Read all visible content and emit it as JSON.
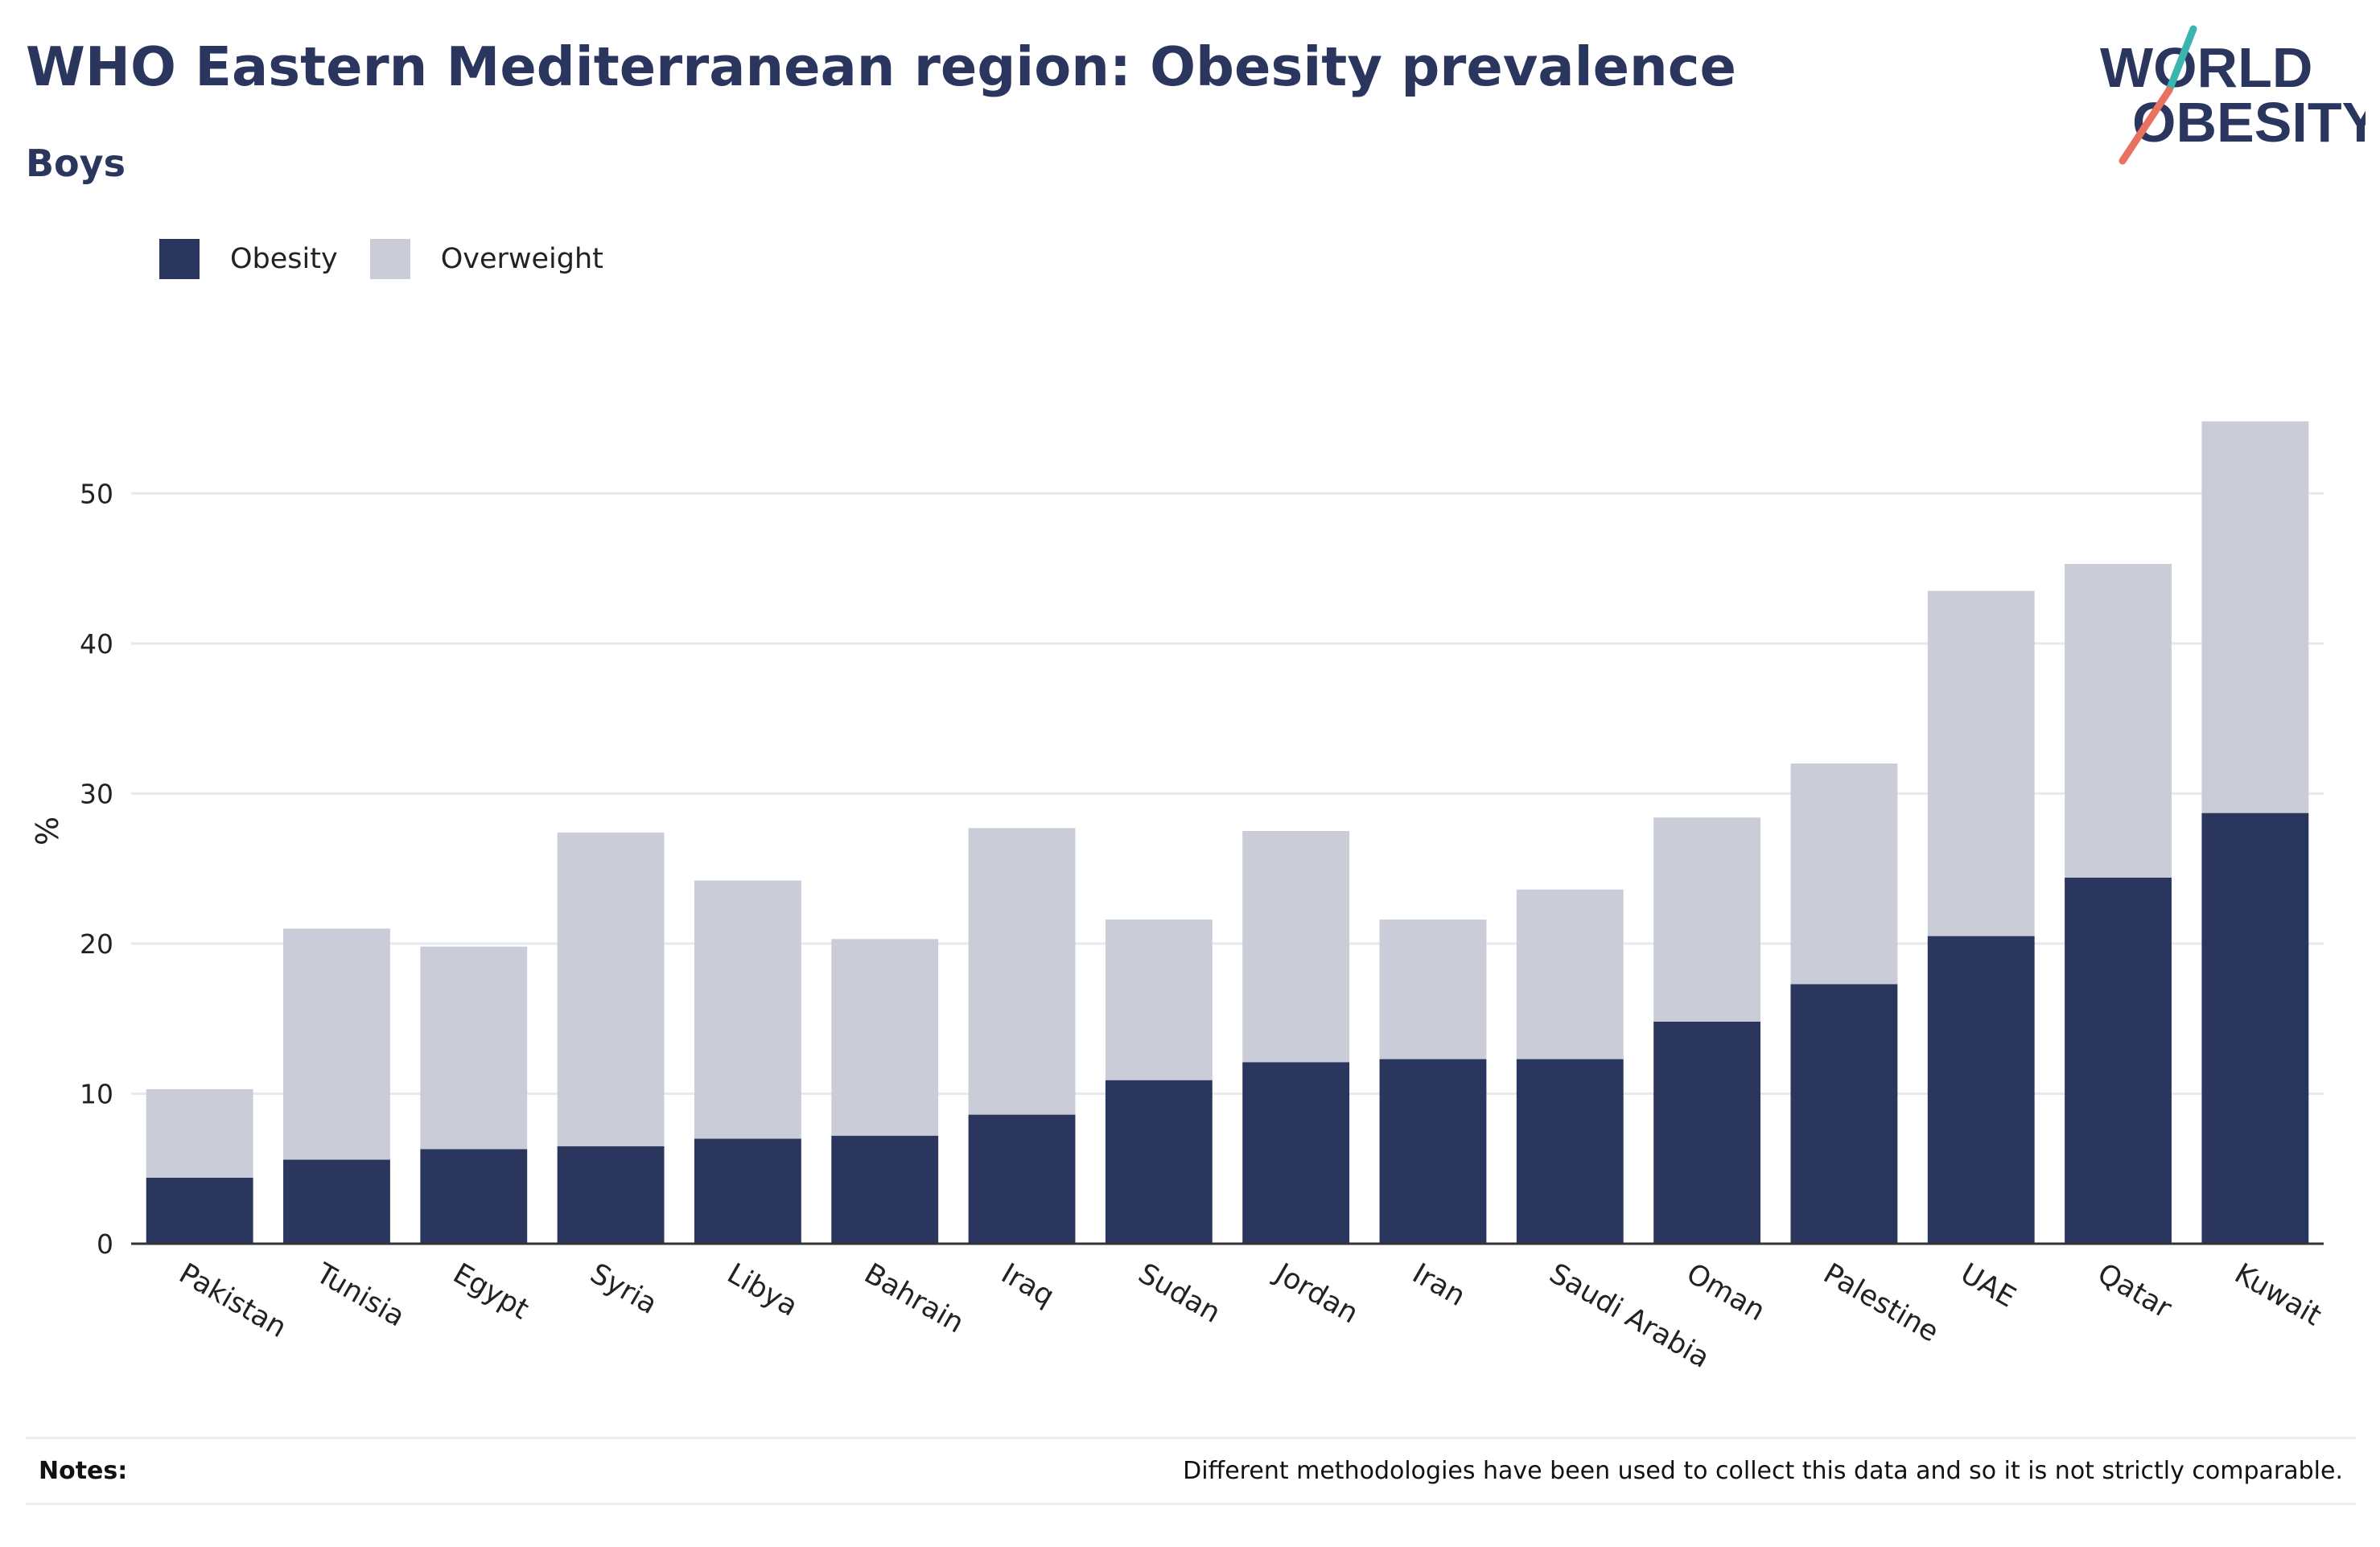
{
  "header": {
    "title": "WHO Eastern Mediterranean region: Obesity prevalence",
    "subtitle": "Boys"
  },
  "logo": {
    "line1": "WORLD",
    "line2": "OBESITY",
    "text_color": "#2b365f",
    "accent_teal": "#3ab5b0",
    "accent_coral": "#e8725f"
  },
  "notes": {
    "label": "Notes:",
    "text": "Different methodologies have been used to collect this data and so it is not strictly comparable."
  },
  "chart_data": {
    "type": "bar",
    "stacked": true,
    "title": "WHO Eastern Mediterranean region: Obesity prevalence",
    "subtitle": "Boys",
    "xlabel": "",
    "ylabel": "%",
    "ylim": [
      0,
      55
    ],
    "yticks": [
      0,
      10,
      20,
      30,
      40,
      50
    ],
    "grid": true,
    "legend_position": "top-left",
    "categories": [
      "Pakistan",
      "Tunisia",
      "Egypt",
      "Syria",
      "Libya",
      "Bahrain",
      "Iraq",
      "Sudan",
      "Jordan",
      "Iran",
      "Saudi Arabia",
      "Oman",
      "Palestine",
      "UAE",
      "Qatar",
      "Kuwait"
    ],
    "series": [
      {
        "name": "Obesity",
        "color": "#2b365f",
        "values": [
          4.4,
          5.6,
          6.3,
          6.5,
          7.0,
          7.2,
          8.6,
          10.9,
          12.1,
          12.3,
          12.3,
          14.8,
          17.3,
          20.5,
          24.4,
          28.7
        ]
      },
      {
        "name": "Overweight",
        "color": "#cacdd8",
        "values": [
          5.9,
          15.4,
          13.5,
          20.9,
          17.2,
          13.1,
          19.1,
          10.7,
          15.4,
          9.3,
          11.3,
          13.6,
          14.7,
          23.0,
          20.9,
          26.1
        ]
      }
    ]
  }
}
